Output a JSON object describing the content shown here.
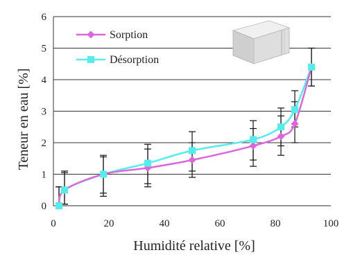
{
  "chart_data": {
    "type": "line",
    "title": "",
    "xlabel": "Humidité relative [%]",
    "ylabel": "Teneur en eau [%]",
    "xlim": [
      0,
      100
    ],
    "ylim": [
      0,
      6
    ],
    "x_ticks": [
      "0",
      "20",
      "40",
      "60",
      "80",
      "100"
    ],
    "y_ticks": [
      "0",
      "1",
      "2",
      "3",
      "4",
      "5",
      "6"
    ],
    "grid": "horizontal",
    "legend_position": "top-left",
    "x": [
      2,
      4,
      18,
      34,
      50,
      72,
      82,
      87,
      93
    ],
    "series": [
      {
        "name": "Sorption",
        "color": "#dd66dd",
        "marker": "diamond",
        "values": [
          0.0,
          0.5,
          1.0,
          1.2,
          1.45,
          1.9,
          2.2,
          2.6,
          4.4
        ],
        "error_low": [
          0.0,
          0.05,
          0.3,
          0.6,
          0.9,
          1.25,
          1.6,
          2.0,
          3.8
        ],
        "error_high": [
          0.6,
          1.1,
          1.55,
          1.8,
          2.0,
          2.45,
          2.85,
          3.3,
          5.0
        ]
      },
      {
        "name": "Désorption",
        "color": "#55ecec",
        "marker": "square",
        "values": [
          0.0,
          0.5,
          1.0,
          1.35,
          1.75,
          2.1,
          2.5,
          3.05,
          4.4
        ],
        "error_low": [
          0.0,
          0.05,
          0.4,
          0.7,
          1.1,
          1.45,
          1.9,
          2.5,
          3.8
        ],
        "error_high": [
          0.6,
          1.05,
          1.6,
          1.95,
          2.35,
          2.7,
          3.1,
          3.65,
          5.0
        ]
      }
    ]
  },
  "colors": {
    "axis": "#555555",
    "grid": "#333333",
    "error_bar": "#111111"
  },
  "image": {
    "icon": "concrete-block-icon"
  }
}
